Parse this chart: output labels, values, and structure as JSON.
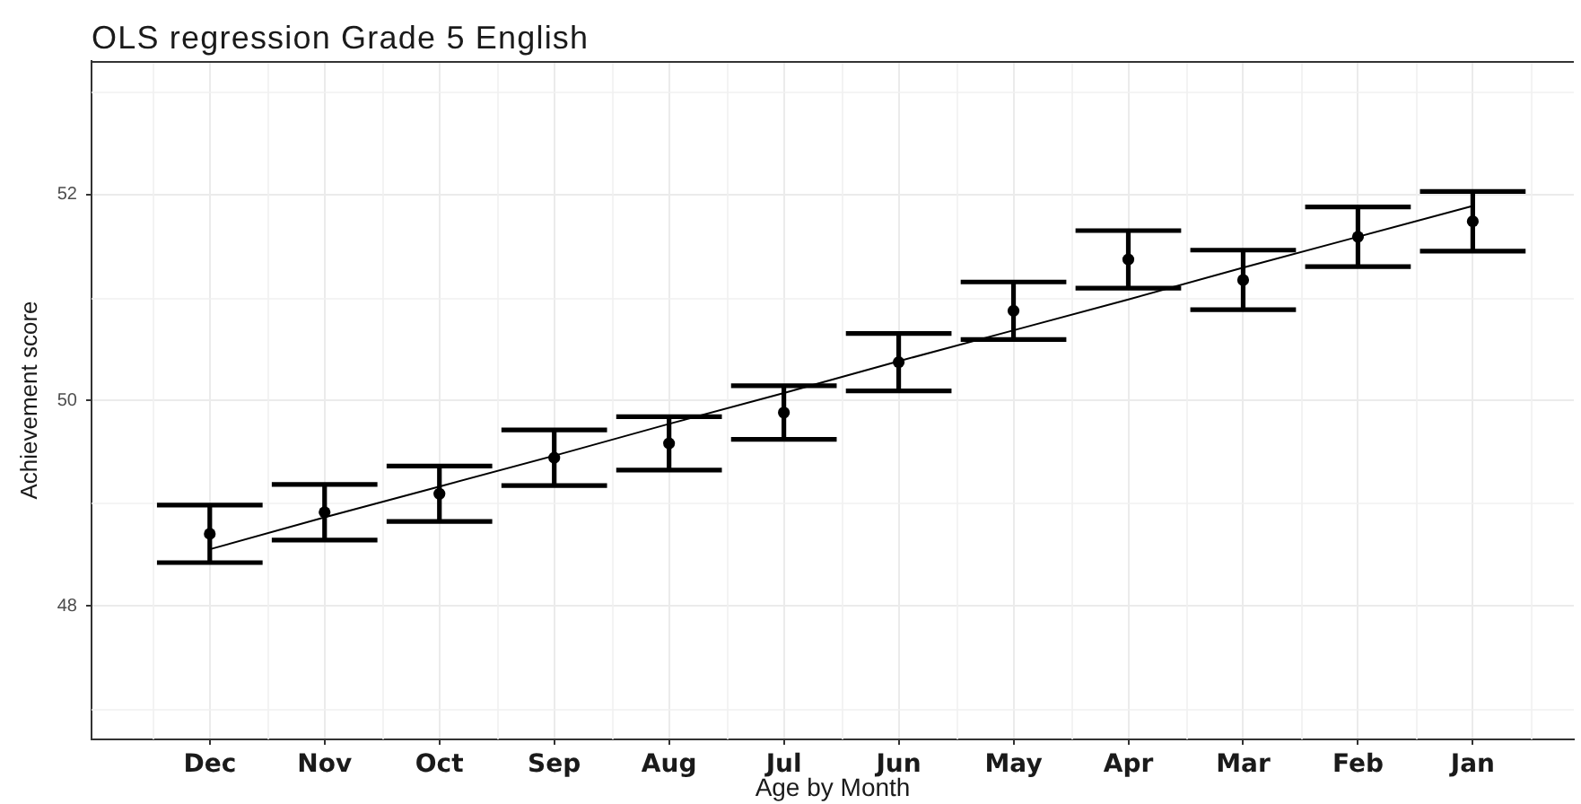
{
  "chart_data": {
    "type": "scatter",
    "title": "OLS regression Grade 5 English",
    "xlabel": "Age by Month",
    "ylabel": "Achievement score",
    "categories": [
      "Dec",
      "Nov",
      "Oct",
      "Sep",
      "Aug",
      "Jul",
      "Jun",
      "May",
      "Apr",
      "Mar",
      "Feb",
      "Jan"
    ],
    "ylim": [
      46.7,
      53.3
    ],
    "yticks": [
      48,
      50,
      52
    ],
    "grid": true,
    "series": [
      {
        "type": "line",
        "color": "#000000",
        "marker": "none",
        "values": [
          48.55,
          48.86,
          49.16,
          49.46,
          49.77,
          50.07,
          50.38,
          50.68,
          50.98,
          51.29,
          51.59,
          51.89
        ]
      },
      {
        "type": "scatter",
        "color": "#000000",
        "marker": "circle",
        "values": [
          48.7,
          48.91,
          49.09,
          49.44,
          49.58,
          49.88,
          50.37,
          50.87,
          51.37,
          51.17,
          51.59,
          51.74
        ],
        "errors": [
          0.28,
          0.27,
          0.27,
          0.27,
          0.26,
          0.26,
          0.28,
          0.28,
          0.28,
          0.29,
          0.29,
          0.29
        ]
      }
    ]
  }
}
